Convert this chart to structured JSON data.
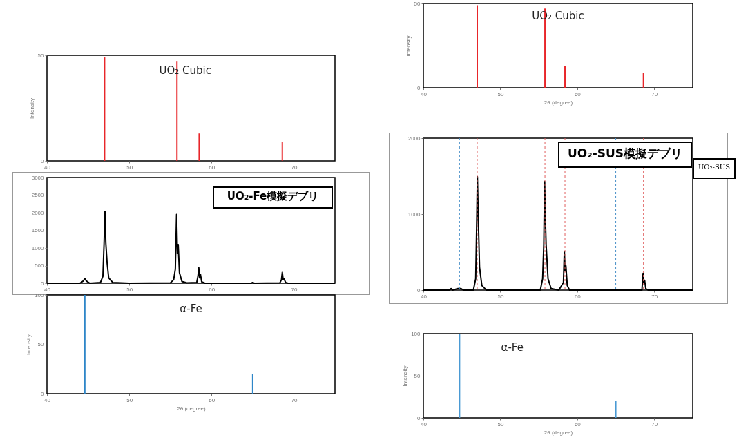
{
  "chart_data": [
    {
      "type": "bar",
      "x": [
        47.0,
        55.8,
        58.5,
        68.6
      ],
      "values": [
        49,
        47,
        13,
        9
      ],
      "color": "#e8262a",
      "xlim": [
        40,
        75
      ],
      "xticks": [
        40,
        50,
        60,
        70
      ],
      "ylim": [
        0,
        50
      ],
      "yticks": [
        0,
        50
      ],
      "ylabel": "Intensity",
      "annotations": [
        "UO₂ Cubic"
      ]
    },
    {
      "type": "line",
      "color": "#000000",
      "xlim": [
        40,
        75
      ],
      "xticks": [
        40,
        50,
        60,
        70
      ],
      "ylim": [
        0,
        3000
      ],
      "yticks": [
        0,
        500,
        1000,
        1500,
        2000,
        2500,
        3000
      ],
      "annotations": [
        "UO₂-Fe模擬デブリ"
      ],
      "x": [
        40,
        44.0,
        44.4,
        44.6,
        44.8,
        45.2,
        46.5,
        46.8,
        46.95,
        47.05,
        47.15,
        47.3,
        47.5,
        48,
        50,
        55,
        55.4,
        55.6,
        55.75,
        55.85,
        55.95,
        56.1,
        56.4,
        57,
        58.2,
        58.35,
        58.45,
        58.55,
        58.65,
        58.8,
        59.2,
        64.8,
        65.0,
        65.2,
        68.3,
        68.5,
        68.6,
        68.7,
        68.8,
        69.0,
        69.3,
        75
      ],
      "values": [
        0,
        0,
        60,
        130,
        60,
        0,
        20,
        200,
        1200,
        2040,
        1150,
        600,
        150,
        20,
        0,
        10,
        100,
        400,
        1950,
        850,
        1100,
        300,
        50,
        10,
        20,
        200,
        440,
        150,
        250,
        40,
        0,
        0,
        20,
        0,
        10,
        100,
        310,
        100,
        130,
        20,
        0,
        0
      ]
    },
    {
      "type": "bar",
      "x": [
        44.6,
        65.0
      ],
      "values": [
        100,
        20
      ],
      "color": "#2e86c8",
      "xlim": [
        40,
        75
      ],
      "xticks": [
        40,
        50,
        60,
        70
      ],
      "ylim": [
        0,
        100
      ],
      "yticks": [
        0,
        50,
        100
      ],
      "ylabel": "Intensity",
      "xlabel": "2θ (degree)",
      "annotations": [
        "α-Fe"
      ]
    },
    {
      "type": "bar",
      "x": [
        47.0,
        55.8,
        58.4,
        68.6
      ],
      "values": [
        49,
        47,
        13,
        9
      ],
      "color": "#e8262a",
      "xlim": [
        40,
        75
      ],
      "xticks": [
        40,
        50,
        60,
        70
      ],
      "ylim": [
        0,
        50
      ],
      "yticks": [
        0,
        50
      ],
      "ylabel": "Intensity",
      "xlabel": "2θ (degree)",
      "annotations": [
        "UO₂ Cubic"
      ]
    },
    {
      "type": "line",
      "color": "#000000",
      "xlim": [
        40,
        75
      ],
      "xticks": [
        40,
        50,
        60,
        70
      ],
      "ylim": [
        0,
        2000
      ],
      "yticks": [
        0,
        1000,
        2000
      ],
      "annotations": [
        "UO₂-SUS模擬デブリ",
        "UO₂-SUS"
      ],
      "x": [
        40,
        43.4,
        43.6,
        43.8,
        44.5,
        44.9,
        45.2,
        46.5,
        46.8,
        46.95,
        47.02,
        47.12,
        47.3,
        47.6,
        48.2,
        51,
        55.2,
        55.5,
        55.65,
        55.76,
        55.85,
        55.95,
        56.2,
        56.6,
        57.6,
        58.2,
        58.32,
        58.42,
        58.52,
        58.7,
        59.0,
        68.4,
        68.55,
        68.65,
        68.75,
        68.9,
        69.2,
        75
      ],
      "values": [
        0,
        0,
        20,
        0,
        20,
        20,
        0,
        0,
        150,
        1000,
        1490,
        1010,
        300,
        60,
        0,
        0,
        0,
        150,
        600,
        1430,
        950,
        600,
        150,
        20,
        0,
        100,
        510,
        250,
        320,
        60,
        0,
        0,
        220,
        100,
        130,
        20,
        0,
        0
      ],
      "ref_lines": [
        {
          "axis": "x",
          "value": 47.0,
          "color": "#e06060",
          "line_style": "dashed"
        },
        {
          "axis": "x",
          "value": 55.8,
          "color": "#e06060",
          "line_style": "dashed"
        },
        {
          "axis": "x",
          "value": 58.4,
          "color": "#e06060",
          "line_style": "dashed"
        },
        {
          "axis": "x",
          "value": 68.6,
          "color": "#e06060",
          "line_style": "dashed"
        },
        {
          "axis": "x",
          "value": 44.7,
          "color": "#4a90c8",
          "line_style": "dashed"
        },
        {
          "axis": "x",
          "value": 65.0,
          "color": "#4a90c8",
          "line_style": "dashed"
        }
      ]
    },
    {
      "type": "bar",
      "x": [
        44.7,
        65.0
      ],
      "values": [
        100,
        20
      ],
      "color": "#4a9ad4",
      "xlim": [
        40,
        75
      ],
      "xticks": [
        40,
        50,
        60,
        70
      ],
      "ylim": [
        0,
        100
      ],
      "yticks": [
        0,
        50,
        100
      ],
      "ylabel": "Intensity",
      "xlabel": "2θ (degree)",
      "annotations": [
        "α-Fe"
      ]
    }
  ]
}
